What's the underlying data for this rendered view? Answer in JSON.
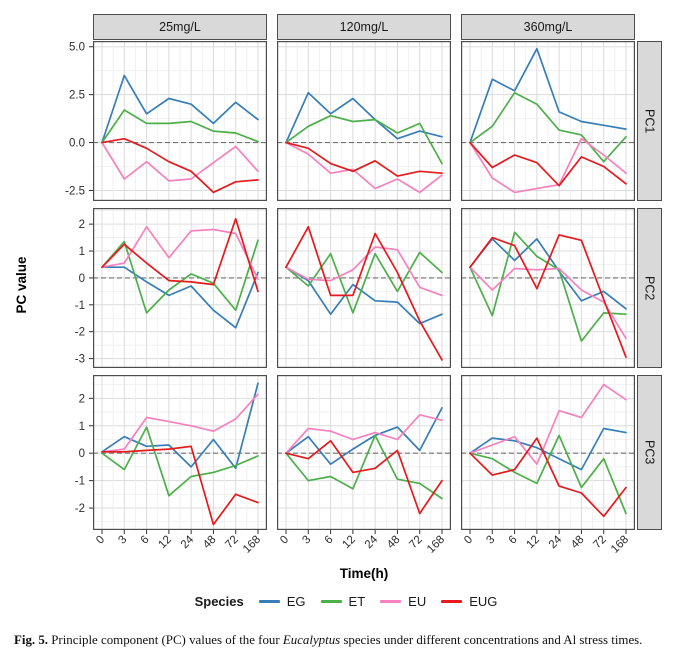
{
  "figure": {
    "legend": {
      "title": "Species",
      "entries": [
        {
          "label": "EG",
          "color": "#377EB8"
        },
        {
          "label": "ET",
          "color": "#4DAF4A"
        },
        {
          "label": "EU",
          "color": "#F781BF"
        },
        {
          "label": "EUG",
          "color": "#E41A1C"
        }
      ]
    },
    "caption": {
      "prefix": "Fig. 5.",
      "before_italic": " Principle component (PC) values of the four ",
      "italic": "Eucalyptus",
      "after_italic": " species under different concentrations and Al stress times."
    }
  },
  "chart_data": {
    "type": "line",
    "facets": {
      "columns": [
        "25mg/L",
        "120mg/L",
        "360mg/L"
      ],
      "rows": [
        "PC1",
        "PC2",
        "PC3"
      ]
    },
    "x": {
      "label": "Time(h)",
      "categories": [
        "0",
        "3",
        "6",
        "12",
        "24",
        "48",
        "72",
        "168"
      ]
    },
    "y": {
      "label": "PC value"
    },
    "legend_position": "bottom",
    "grid": true,
    "zero_line": "dashed",
    "colors": {
      "EG": "#377EB8",
      "ET": "#4DAF4A",
      "EU": "#F781BF",
      "EUG": "#E41A1C"
    },
    "styles": {
      "strip_bg": "#d9d9d9",
      "panel_border": "#4d4d4d",
      "grid_major": "#dcdcdc",
      "grid_minor": "#eeeeee",
      "zero_dash": "#737373"
    },
    "rows": [
      {
        "name": "PC1",
        "tick_values": [
          5.0,
          2.5,
          0.0,
          -2.5
        ],
        "tick_labels": [
          "5.0",
          "2.5",
          "0.0",
          "-2.5"
        ],
        "ylim": [
          -3.05,
          5.3
        ],
        "major_step": 2.5,
        "panels": [
          {
            "column": "25mg/L",
            "series": [
              {
                "name": "EG",
                "values": [
                  0,
                  3.5,
                  1.5,
                  2.3,
                  2.0,
                  1.0,
                  2.1,
                  1.2
                ]
              },
              {
                "name": "ET",
                "values": [
                  0,
                  1.7,
                  1.0,
                  1.0,
                  1.1,
                  0.6,
                  0.5,
                  0.05
                ]
              },
              {
                "name": "EU",
                "values": [
                  0,
                  -1.9,
                  -1.0,
                  -2.0,
                  -1.9,
                  -1.05,
                  -0.2,
                  -1.5
                ]
              },
              {
                "name": "EUG",
                "values": [
                  0,
                  0.2,
                  -0.3,
                  -1.0,
                  -1.5,
                  -2.6,
                  -2.05,
                  -1.95
                ]
              }
            ]
          },
          {
            "column": "120mg/L",
            "series": [
              {
                "name": "EG",
                "values": [
                  0,
                  2.6,
                  1.5,
                  2.3,
                  1.2,
                  0.2,
                  0.6,
                  0.3
                ]
              },
              {
                "name": "ET",
                "values": [
                  0,
                  0.85,
                  1.4,
                  1.1,
                  1.2,
                  0.5,
                  1.0,
                  -1.1
                ]
              },
              {
                "name": "EU",
                "values": [
                  0,
                  -0.6,
                  -1.6,
                  -1.4,
                  -2.4,
                  -1.9,
                  -2.6,
                  -1.7
                ]
              },
              {
                "name": "EUG",
                "values": [
                  0,
                  -0.3,
                  -1.1,
                  -1.5,
                  -0.95,
                  -1.75,
                  -1.5,
                  -1.6
                ]
              }
            ]
          },
          {
            "column": "360mg/L",
            "series": [
              {
                "name": "EG",
                "values": [
                  0,
                  3.3,
                  2.7,
                  4.9,
                  1.6,
                  1.1,
                  0.9,
                  0.7
                ]
              },
              {
                "name": "ET",
                "values": [
                  0,
                  0.85,
                  2.6,
                  2.0,
                  0.65,
                  0.4,
                  -1.0,
                  0.3
                ]
              },
              {
                "name": "EU",
                "values": [
                  0,
                  -1.85,
                  -2.6,
                  -2.4,
                  -2.2,
                  0.2,
                  -0.65,
                  -1.6
                ]
              },
              {
                "name": "EUG",
                "values": [
                  0,
                  -1.3,
                  -0.65,
                  -1.05,
                  -2.25,
                  -0.75,
                  -1.25,
                  -2.15
                ]
              }
            ]
          }
        ]
      },
      {
        "name": "PC2",
        "tick_values": [
          2,
          1,
          0,
          -1,
          -2,
          -3
        ],
        "tick_labels": [
          "2",
          "1",
          "0",
          "-1",
          "-2",
          "-3"
        ],
        "ylim": [
          -3.35,
          2.6
        ],
        "major_step": 1,
        "panels": [
          {
            "column": "25mg/L",
            "series": [
              {
                "name": "EG",
                "values": [
                  0.4,
                  0.4,
                  -0.15,
                  -0.65,
                  -0.3,
                  -1.2,
                  -1.85,
                  0.2
                ]
              },
              {
                "name": "ET",
                "values": [
                  0.4,
                  1.35,
                  -1.3,
                  -0.45,
                  0.15,
                  -0.2,
                  -1.2,
                  1.4
                ]
              },
              {
                "name": "EU",
                "values": [
                  0.4,
                  0.55,
                  1.9,
                  0.75,
                  1.75,
                  1.8,
                  1.65,
                  -0.05
                ]
              },
              {
                "name": "EUG",
                "values": [
                  0.4,
                  1.25,
                  0.55,
                  -0.1,
                  -0.15,
                  -0.25,
                  2.2,
                  -0.5
                ]
              }
            ]
          },
          {
            "column": "120mg/L",
            "series": [
              {
                "name": "EG",
                "values": [
                  0.4,
                  -0.1,
                  -1.35,
                  -0.25,
                  -0.85,
                  -0.9,
                  -1.7,
                  -1.35
                ]
              },
              {
                "name": "ET",
                "values": [
                  0.4,
                  -0.3,
                  0.9,
                  -1.3,
                  0.9,
                  -0.5,
                  0.95,
                  0.2
                ]
              },
              {
                "name": "EU",
                "values": [
                  0.4,
                  -0.05,
                  -0.1,
                  0.3,
                  1.15,
                  1.05,
                  -0.35,
                  -0.65
                ]
              },
              {
                "name": "EUG",
                "values": [
                  0.4,
                  1.9,
                  -0.65,
                  -0.65,
                  1.65,
                  0.2,
                  -1.6,
                  -3.05
                ]
              }
            ]
          },
          {
            "column": "360mg/L",
            "series": [
              {
                "name": "EG",
                "values": [
                  0.4,
                  1.45,
                  0.65,
                  1.45,
                  0.25,
                  -0.85,
                  -0.5,
                  -1.15
                ]
              },
              {
                "name": "ET",
                "values": [
                  0.4,
                  -1.4,
                  1.7,
                  0.8,
                  0.3,
                  -2.35,
                  -1.3,
                  -1.35
                ]
              },
              {
                "name": "EU",
                "values": [
                  0.4,
                  -0.45,
                  0.35,
                  0.3,
                  0.35,
                  -0.45,
                  -0.9,
                  -2.25
                ]
              },
              {
                "name": "EUG",
                "values": [
                  0.4,
                  1.5,
                  1.2,
                  -0.4,
                  1.6,
                  1.4,
                  -0.8,
                  -2.95
                ]
              }
            ]
          }
        ]
      },
      {
        "name": "PC3",
        "tick_values": [
          2,
          1,
          0,
          -1,
          -2
        ],
        "tick_labels": [
          "2",
          "1",
          "0",
          "-1",
          "-2"
        ],
        "ylim": [
          -2.8,
          2.85
        ],
        "major_step": 1,
        "panels": [
          {
            "column": "25mg/L",
            "series": [
              {
                "name": "EG",
                "values": [
                  0.05,
                  0.6,
                  0.25,
                  0.3,
                  -0.5,
                  0.5,
                  -0.55,
                  2.55
                ]
              },
              {
                "name": "ET",
                "values": [
                  0,
                  -0.6,
                  0.95,
                  -1.55,
                  -0.85,
                  -0.7,
                  -0.45,
                  -0.1
                ]
              },
              {
                "name": "EU",
                "values": [
                  0.05,
                  0.15,
                  1.3,
                  1.15,
                  1.0,
                  0.8,
                  1.25,
                  2.15
                ]
              },
              {
                "name": "EUG",
                "values": [
                  0.05,
                  0.05,
                  0.1,
                  0.15,
                  0.25,
                  -2.6,
                  -1.5,
                  -1.8
                ]
              }
            ]
          },
          {
            "column": "120mg/L",
            "series": [
              {
                "name": "EG",
                "values": [
                  0,
                  0.6,
                  -0.4,
                  0.15,
                  0.65,
                  0.95,
                  0.1,
                  1.65
                ]
              },
              {
                "name": "ET",
                "values": [
                  0,
                  -1.0,
                  -0.85,
                  -1.3,
                  0.65,
                  -0.95,
                  -1.1,
                  -1.65
                ]
              },
              {
                "name": "EU",
                "values": [
                  0,
                  0.9,
                  0.8,
                  0.5,
                  0.75,
                  0.5,
                  1.4,
                  1.2
                ]
              },
              {
                "name": "EUG",
                "values": [
                  0,
                  -0.2,
                  0.45,
                  -0.7,
                  -0.55,
                  0.1,
                  -2.2,
                  -1.0
                ]
              }
            ]
          },
          {
            "column": "360mg/L",
            "series": [
              {
                "name": "EG",
                "values": [
                  0,
                  0.55,
                  0.45,
                  0.2,
                  -0.2,
                  -0.6,
                  0.9,
                  0.75
                ]
              },
              {
                "name": "ET",
                "values": [
                  0,
                  -0.2,
                  -0.7,
                  -1.1,
                  0.65,
                  -1.25,
                  -0.2,
                  -2.2
                ]
              },
              {
                "name": "EU",
                "values": [
                  0,
                  0.3,
                  0.6,
                  -0.4,
                  1.55,
                  1.3,
                  2.5,
                  1.95
                ]
              },
              {
                "name": "EUG",
                "values": [
                  0,
                  -0.8,
                  -0.6,
                  0.55,
                  -1.2,
                  -1.45,
                  -2.3,
                  -1.25
                ]
              }
            ]
          }
        ]
      }
    ]
  }
}
